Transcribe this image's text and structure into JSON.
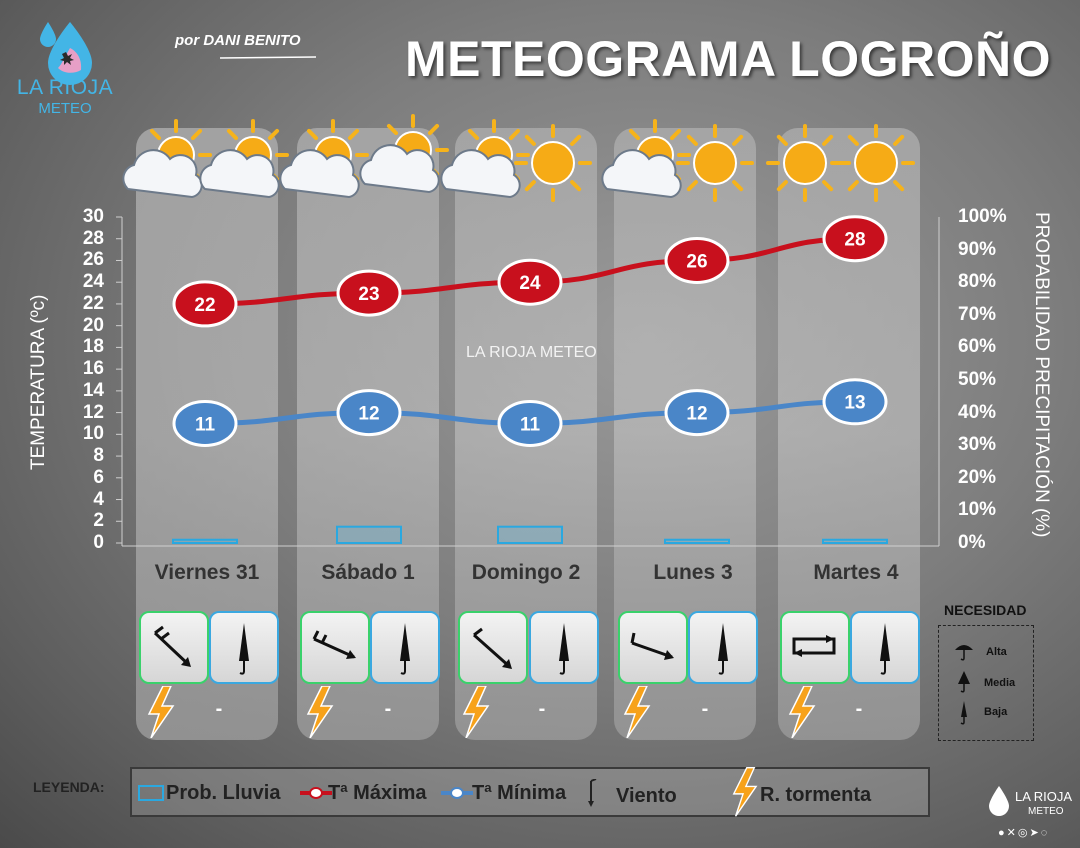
{
  "header": {
    "title": "METEOGRAMA LOGROÑO",
    "author": "por DANI BENITO",
    "logo_name": "LA RIOJA",
    "logo_sub": "METEO"
  },
  "watermark": "LA RIOJA METEO",
  "chart_data": {
    "type": "line",
    "categories": [
      "Viernes 31",
      "Sábado 1",
      "Domingo 2",
      "Lunes 3",
      "Martes 4"
    ],
    "series": [
      {
        "name": "Tª Máxima",
        "values": [
          22,
          23,
          24,
          26,
          28
        ],
        "color": "#c8101d"
      },
      {
        "name": "Tª Mínima",
        "values": [
          11,
          12,
          11,
          12,
          13
        ],
        "color": "#4a86c8"
      },
      {
        "name": "Prob. Lluvia",
        "values": [
          1,
          5,
          5,
          1,
          1
        ],
        "color": "#2aa8e0",
        "type": "bar",
        "axis": "right"
      }
    ],
    "ylabel": "TEMPERATURA (ºc)",
    "ylim": [
      0,
      30
    ],
    "yticks": [
      0,
      2,
      4,
      6,
      8,
      10,
      12,
      14,
      16,
      18,
      20,
      22,
      24,
      26,
      28,
      30
    ],
    "y2label": "PROPABILIDAD PRECIPITACIÓN (%)",
    "y2lim": [
      0,
      100
    ],
    "y2ticks": [
      "0%",
      "10%",
      "20%",
      "30%",
      "40%",
      "50%",
      "60%",
      "70%",
      "80%",
      "90%",
      "100%"
    ]
  },
  "days": [
    {
      "label": "Viernes 31",
      "icons": [
        "sun-cloud-icon",
        "sun-cloud-icon"
      ],
      "wind": "wind-northwest-icon",
      "need": "baja",
      "storm_dash": "-"
    },
    {
      "label": "Sábado 1",
      "icons": [
        "sun-cloud-icon",
        "sun-cloud-icon"
      ],
      "wind": "wind-west-icon",
      "need": "baja",
      "storm_dash": "-"
    },
    {
      "label": "Domingo 2",
      "icons": [
        "sun-cloud-icon",
        "sun-icon"
      ],
      "wind": "wind-northwest-icon",
      "need": "baja",
      "storm_dash": "-"
    },
    {
      "label": "Lunes 3",
      "icons": [
        "sun-cloud-icon",
        "sun-icon"
      ],
      "wind": "wind-west-icon",
      "need": "baja",
      "storm_dash": "-"
    },
    {
      "label": "Martes 4",
      "icons": [
        "sun-icon",
        "sun-icon"
      ],
      "wind": "wind-variable-icon",
      "need": "baja",
      "storm_dash": "-"
    }
  ],
  "necesidad": {
    "title": "NECESIDAD",
    "items": [
      "Alta",
      "Media",
      "Baja"
    ]
  },
  "legend": {
    "label": "LEYENDA:",
    "items": [
      "Prob. Lluvia",
      "Tª Máxima",
      "Tª Mínima",
      "Viento",
      "R. tormenta"
    ]
  },
  "footer": {
    "brand": "LA RIOJA",
    "brand_sub": "METEO"
  }
}
